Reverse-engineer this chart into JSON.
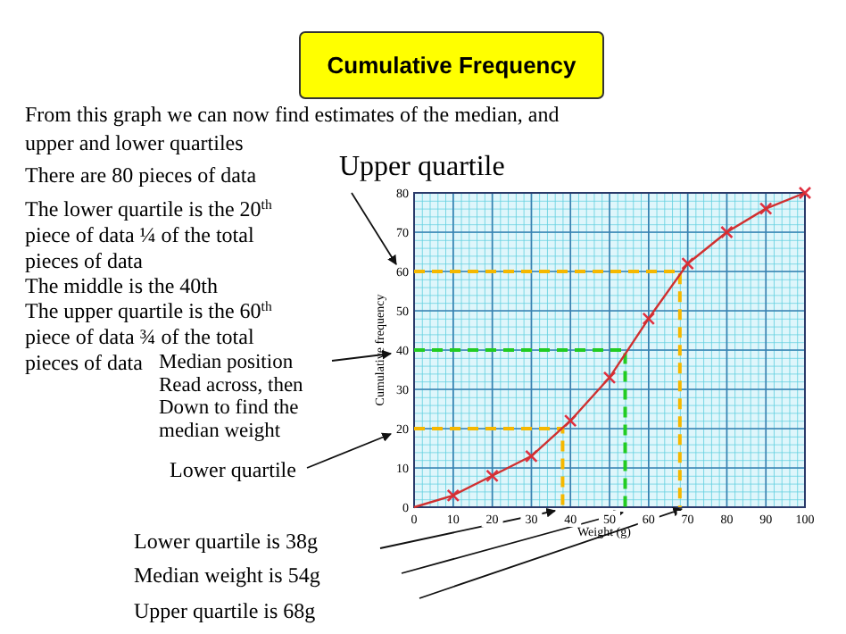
{
  "chart_data": {
    "type": "line",
    "title": "Cumulative Frequency",
    "xlabel": "Weight (g)",
    "ylabel": "Cumulative frequency",
    "xlim": [
      0,
      100
    ],
    "ylim": [
      0,
      80
    ],
    "xticks": [
      0,
      10,
      20,
      30,
      40,
      50,
      60,
      70,
      80,
      90,
      100
    ],
    "yticks": [
      0,
      10,
      20,
      30,
      40,
      50,
      60,
      70,
      80
    ],
    "grid": true,
    "series": [
      {
        "type": "line",
        "color": "#d03030",
        "marker": "none",
        "x": [
          0,
          10,
          20,
          30,
          40,
          50,
          60,
          70,
          80,
          90,
          100
        ],
        "values": [
          0,
          3,
          8,
          13,
          22,
          33,
          48,
          62,
          70,
          76,
          80
        ]
      },
      {
        "type": "scatter",
        "color": "#e03040",
        "marker": "cross",
        "x": [
          10,
          20,
          30,
          40,
          50,
          60,
          70,
          80,
          90,
          100
        ],
        "values": [
          3,
          8,
          13,
          22,
          33,
          48,
          62,
          70,
          76,
          80
        ]
      },
      {
        "type": "line",
        "color": "#f5b800",
        "line_style": "dashed",
        "x": [
          0,
          38,
          38
        ],
        "values": [
          20,
          20,
          0
        ]
      },
      {
        "type": "line",
        "color": "#22cc22",
        "line_style": "dashed",
        "x": [
          0,
          54,
          54
        ],
        "values": [
          40,
          40,
          0
        ]
      },
      {
        "type": "line",
        "color": "#f5b800",
        "line_style": "dashed",
        "x": [
          0,
          68,
          68
        ],
        "values": [
          60,
          60,
          0
        ]
      }
    ],
    "annotations": [
      "From this graph we can now find estimates of the median, and upper and lower quartiles",
      "There are 80 pieces of data",
      "The lower quartile is the 20$^{th}$ piece of data ¼ of the total pieces of data",
      "The middle is the 40th",
      "The upper quartile is the 60$^{th}$ piece of data ¾ of the total pieces of data",
      "Upper quartile",
      "Median position Read across, then Down to find the median weight",
      "Lower quartile",
      "Lower quartile is 38g",
      "Median weight is 54g",
      "Upper quartile is 68g"
    ]
  }
}
